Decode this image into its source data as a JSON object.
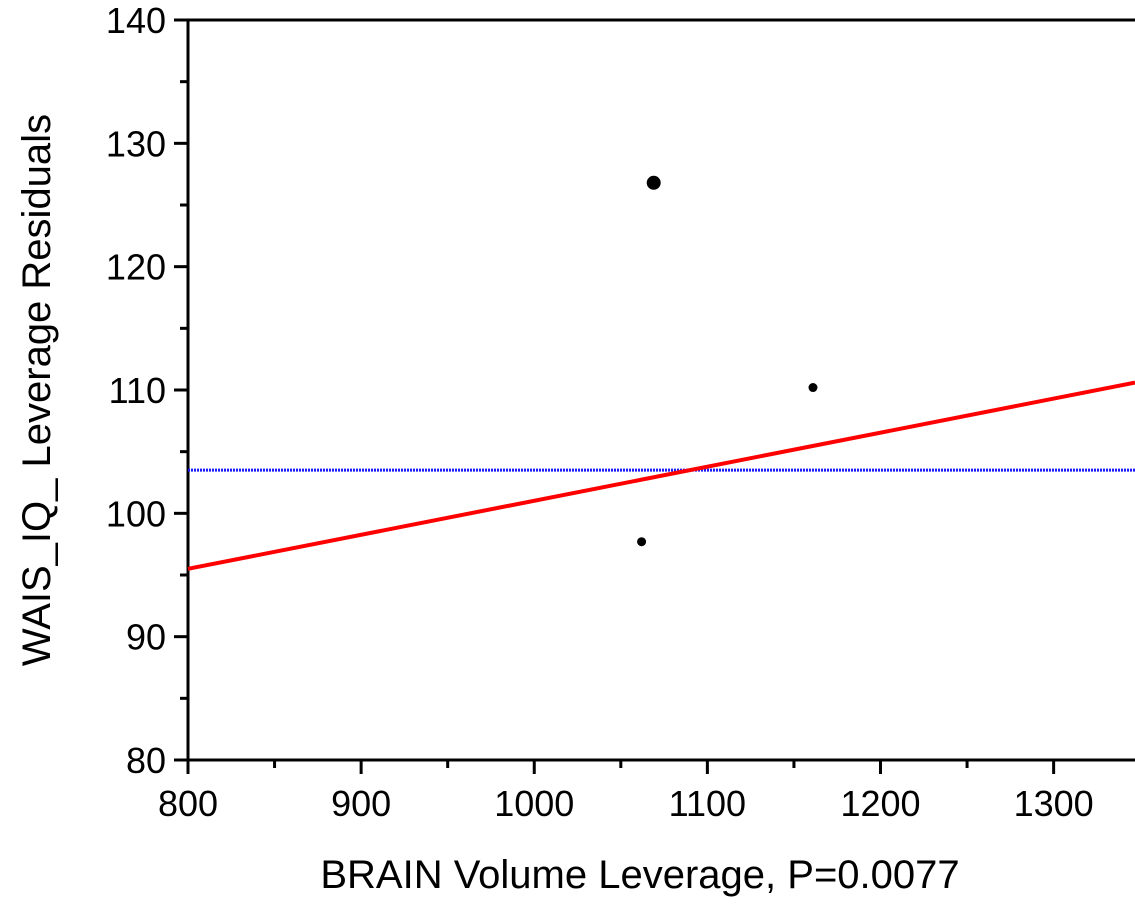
{
  "chart_data": {
    "type": "scatter",
    "x_label": "BRAIN Volume Leverage, P=0.0077",
    "y_label": "WAIS_IQ_ Leverage Residuals",
    "x": [
      1069,
      1161,
      1062
    ],
    "values": [
      126.8,
      110.2,
      97.7
    ],
    "sizes": [
      14,
      9,
      9
    ],
    "color": "#000000",
    "fit_line": {
      "x": [
        800,
        1347
      ],
      "values": [
        95.5,
        110.6
      ],
      "color": "#ff0000"
    },
    "mean_line": {
      "value": 103.5,
      "color": "#1a1aff"
    },
    "xlim": [
      800,
      1347
    ],
    "ylim": [
      80,
      140
    ],
    "xticks": [
      800,
      900,
      1000,
      1100,
      1200,
      1300
    ],
    "xminor_ticks": [
      850,
      950,
      1050,
      1150,
      1250
    ],
    "yticks": [
      80,
      90,
      100,
      110,
      120,
      130,
      140
    ],
    "yminor_ticks": [
      85,
      95,
      105,
      115,
      125,
      135
    ]
  }
}
